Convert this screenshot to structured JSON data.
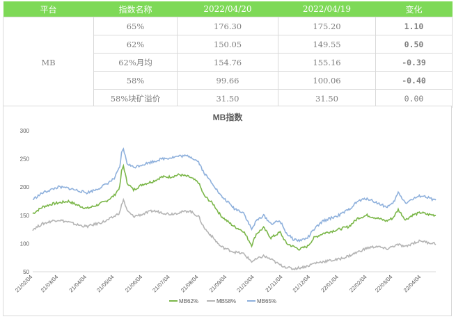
{
  "table": {
    "headers": [
      "平台",
      "指数名称",
      "2022/04/20",
      "2022/04/19",
      "变化"
    ],
    "platform": "MB",
    "rows": [
      {
        "name": "65%",
        "v1": "176.30",
        "v2": "175.20",
        "chg": "1.10",
        "dir": "up"
      },
      {
        "name": "62%",
        "v1": "150.05",
        "v2": "149.55",
        "chg": "0.50",
        "dir": "up"
      },
      {
        "name": "62%月均",
        "v1": "154.76",
        "v2": "155.16",
        "chg": "-0.39",
        "dir": "down"
      },
      {
        "name": "58%",
        "v1": "99.66",
        "v2": "100.06",
        "chg": "-0.40",
        "dir": "down"
      },
      {
        "name": "58%块矿溢价",
        "v1": "31.50",
        "v2": "31.50",
        "chg": "0.00",
        "dir": "flat"
      }
    ]
  },
  "colors": {
    "header_bg": "#7ed957",
    "up": "#e00000",
    "down": "#00a060",
    "mb62": "#7ab648",
    "mb58": "#b4b4b4",
    "mb65": "#8eb0dc"
  },
  "chart_data": {
    "type": "line",
    "title": "MB指数",
    "ylim": [
      50,
      300
    ],
    "yticks": [
      50,
      100,
      150,
      200,
      250,
      300
    ],
    "x_start": "2021-02-04",
    "x_end": "2022-04-20",
    "xticks": [
      "21/02/04",
      "21/03/04",
      "21/04/04",
      "21/05/04",
      "21/06/04",
      "21/07/04",
      "21/08/04",
      "21/09/04",
      "21/10/04",
      "21/11/04",
      "21/12/04",
      "22/01/04",
      "22/02/04",
      "22/03/04",
      "22/04/04"
    ],
    "series": [
      {
        "name": "MB62%",
        "color": "#7ab648",
        "points": [
          [
            "2021-02-04",
            153
          ],
          [
            "2021-02-15",
            165
          ],
          [
            "2021-02-25",
            170
          ],
          [
            "2021-03-04",
            172
          ],
          [
            "2021-03-15",
            175
          ],
          [
            "2021-03-25",
            168
          ],
          [
            "2021-04-04",
            162
          ],
          [
            "2021-04-15",
            168
          ],
          [
            "2021-04-25",
            175
          ],
          [
            "2021-05-04",
            185
          ],
          [
            "2021-05-10",
            200
          ],
          [
            "2021-05-12",
            228
          ],
          [
            "2021-05-14",
            238
          ],
          [
            "2021-05-18",
            208
          ],
          [
            "2021-05-25",
            195
          ],
          [
            "2021-06-04",
            205
          ],
          [
            "2021-06-15",
            210
          ],
          [
            "2021-06-25",
            218
          ],
          [
            "2021-07-04",
            218
          ],
          [
            "2021-07-14",
            222
          ],
          [
            "2021-07-25",
            218
          ],
          [
            "2021-08-04",
            208
          ],
          [
            "2021-08-10",
            185
          ],
          [
            "2021-08-20",
            170
          ],
          [
            "2021-08-28",
            150
          ],
          [
            "2021-09-04",
            140
          ],
          [
            "2021-09-12",
            130
          ],
          [
            "2021-09-22",
            122
          ],
          [
            "2021-10-01",
            97
          ],
          [
            "2021-10-06",
            117
          ],
          [
            "2021-10-14",
            128
          ],
          [
            "2021-10-22",
            110
          ],
          [
            "2021-11-01",
            120
          ],
          [
            "2021-11-08",
            100
          ],
          [
            "2021-11-15",
            95
          ],
          [
            "2021-11-22",
            90
          ],
          [
            "2021-12-01",
            95
          ],
          [
            "2021-12-08",
            110
          ],
          [
            "2021-12-18",
            118
          ],
          [
            "2022-01-04",
            125
          ],
          [
            "2022-01-15",
            130
          ],
          [
            "2022-01-25",
            145
          ],
          [
            "2022-02-04",
            150
          ],
          [
            "2022-02-15",
            145
          ],
          [
            "2022-02-25",
            140
          ],
          [
            "2022-03-04",
            145
          ],
          [
            "2022-03-10",
            160
          ],
          [
            "2022-03-18",
            142
          ],
          [
            "2022-03-25",
            150
          ],
          [
            "2022-04-04",
            155
          ],
          [
            "2022-04-10",
            152
          ],
          [
            "2022-04-20",
            150
          ]
        ]
      },
      {
        "name": "MB58%",
        "color": "#b4b4b4",
        "points": [
          [
            "2021-02-04",
            125
          ],
          [
            "2021-02-15",
            135
          ],
          [
            "2021-02-25",
            140
          ],
          [
            "2021-03-04",
            142
          ],
          [
            "2021-03-15",
            138
          ],
          [
            "2021-03-25",
            133
          ],
          [
            "2021-04-04",
            130
          ],
          [
            "2021-04-15",
            135
          ],
          [
            "2021-04-25",
            140
          ],
          [
            "2021-05-04",
            148
          ],
          [
            "2021-05-10",
            155
          ],
          [
            "2021-05-12",
            168
          ],
          [
            "2021-05-14",
            178
          ],
          [
            "2021-05-18",
            158
          ],
          [
            "2021-05-25",
            148
          ],
          [
            "2021-06-04",
            152
          ],
          [
            "2021-06-15",
            158
          ],
          [
            "2021-06-25",
            155
          ],
          [
            "2021-07-04",
            152
          ],
          [
            "2021-07-14",
            155
          ],
          [
            "2021-07-25",
            158
          ],
          [
            "2021-08-04",
            148
          ],
          [
            "2021-08-10",
            128
          ],
          [
            "2021-08-20",
            110
          ],
          [
            "2021-08-28",
            95
          ],
          [
            "2021-09-04",
            90
          ],
          [
            "2021-09-12",
            85
          ],
          [
            "2021-09-22",
            82
          ],
          [
            "2021-10-01",
            68
          ],
          [
            "2021-10-06",
            72
          ],
          [
            "2021-10-14",
            78
          ],
          [
            "2021-10-22",
            72
          ],
          [
            "2021-11-01",
            62
          ],
          [
            "2021-11-08",
            58
          ],
          [
            "2021-11-15",
            55
          ],
          [
            "2021-11-22",
            57
          ],
          [
            "2021-12-01",
            60
          ],
          [
            "2021-12-08",
            65
          ],
          [
            "2021-12-18",
            68
          ],
          [
            "2022-01-04",
            72
          ],
          [
            "2022-01-15",
            78
          ],
          [
            "2022-01-25",
            85
          ],
          [
            "2022-02-04",
            92
          ],
          [
            "2022-02-15",
            95
          ],
          [
            "2022-02-25",
            90
          ],
          [
            "2022-03-04",
            95
          ],
          [
            "2022-03-10",
            98
          ],
          [
            "2022-03-18",
            94
          ],
          [
            "2022-03-25",
            100
          ],
          [
            "2022-04-04",
            105
          ],
          [
            "2022-04-10",
            102
          ],
          [
            "2022-04-20",
            100
          ]
        ]
      },
      {
        "name": "MB65%",
        "color": "#8eb0dc",
        "points": [
          [
            "2021-02-04",
            178
          ],
          [
            "2021-02-15",
            190
          ],
          [
            "2021-02-25",
            196
          ],
          [
            "2021-03-04",
            200
          ],
          [
            "2021-03-15",
            198
          ],
          [
            "2021-03-25",
            194
          ],
          [
            "2021-04-04",
            190
          ],
          [
            "2021-04-15",
            196
          ],
          [
            "2021-04-25",
            205
          ],
          [
            "2021-05-04",
            215
          ],
          [
            "2021-05-10",
            235
          ],
          [
            "2021-05-12",
            260
          ],
          [
            "2021-05-14",
            268
          ],
          [
            "2021-05-18",
            242
          ],
          [
            "2021-05-25",
            235
          ],
          [
            "2021-06-04",
            240
          ],
          [
            "2021-06-15",
            245
          ],
          [
            "2021-06-25",
            250
          ],
          [
            "2021-07-04",
            252
          ],
          [
            "2021-07-14",
            255
          ],
          [
            "2021-07-25",
            255
          ],
          [
            "2021-08-04",
            245
          ],
          [
            "2021-08-10",
            225
          ],
          [
            "2021-08-20",
            205
          ],
          [
            "2021-08-28",
            185
          ],
          [
            "2021-09-04",
            175
          ],
          [
            "2021-09-12",
            162
          ],
          [
            "2021-09-22",
            155
          ],
          [
            "2021-10-01",
            125
          ],
          [
            "2021-10-06",
            140
          ],
          [
            "2021-10-14",
            150
          ],
          [
            "2021-10-22",
            135
          ],
          [
            "2021-11-01",
            140
          ],
          [
            "2021-11-08",
            118
          ],
          [
            "2021-11-15",
            108
          ],
          [
            "2021-11-22",
            105
          ],
          [
            "2021-12-01",
            110
          ],
          [
            "2021-12-08",
            125
          ],
          [
            "2021-12-18",
            140
          ],
          [
            "2022-01-04",
            150
          ],
          [
            "2022-01-15",
            160
          ],
          [
            "2022-01-25",
            175
          ],
          [
            "2022-02-04",
            180
          ],
          [
            "2022-02-15",
            172
          ],
          [
            "2022-02-25",
            165
          ],
          [
            "2022-03-04",
            170
          ],
          [
            "2022-03-10",
            190
          ],
          [
            "2022-03-18",
            172
          ],
          [
            "2022-03-25",
            178
          ],
          [
            "2022-04-04",
            185
          ],
          [
            "2022-04-10",
            182
          ],
          [
            "2022-04-20",
            176
          ]
        ]
      }
    ]
  }
}
